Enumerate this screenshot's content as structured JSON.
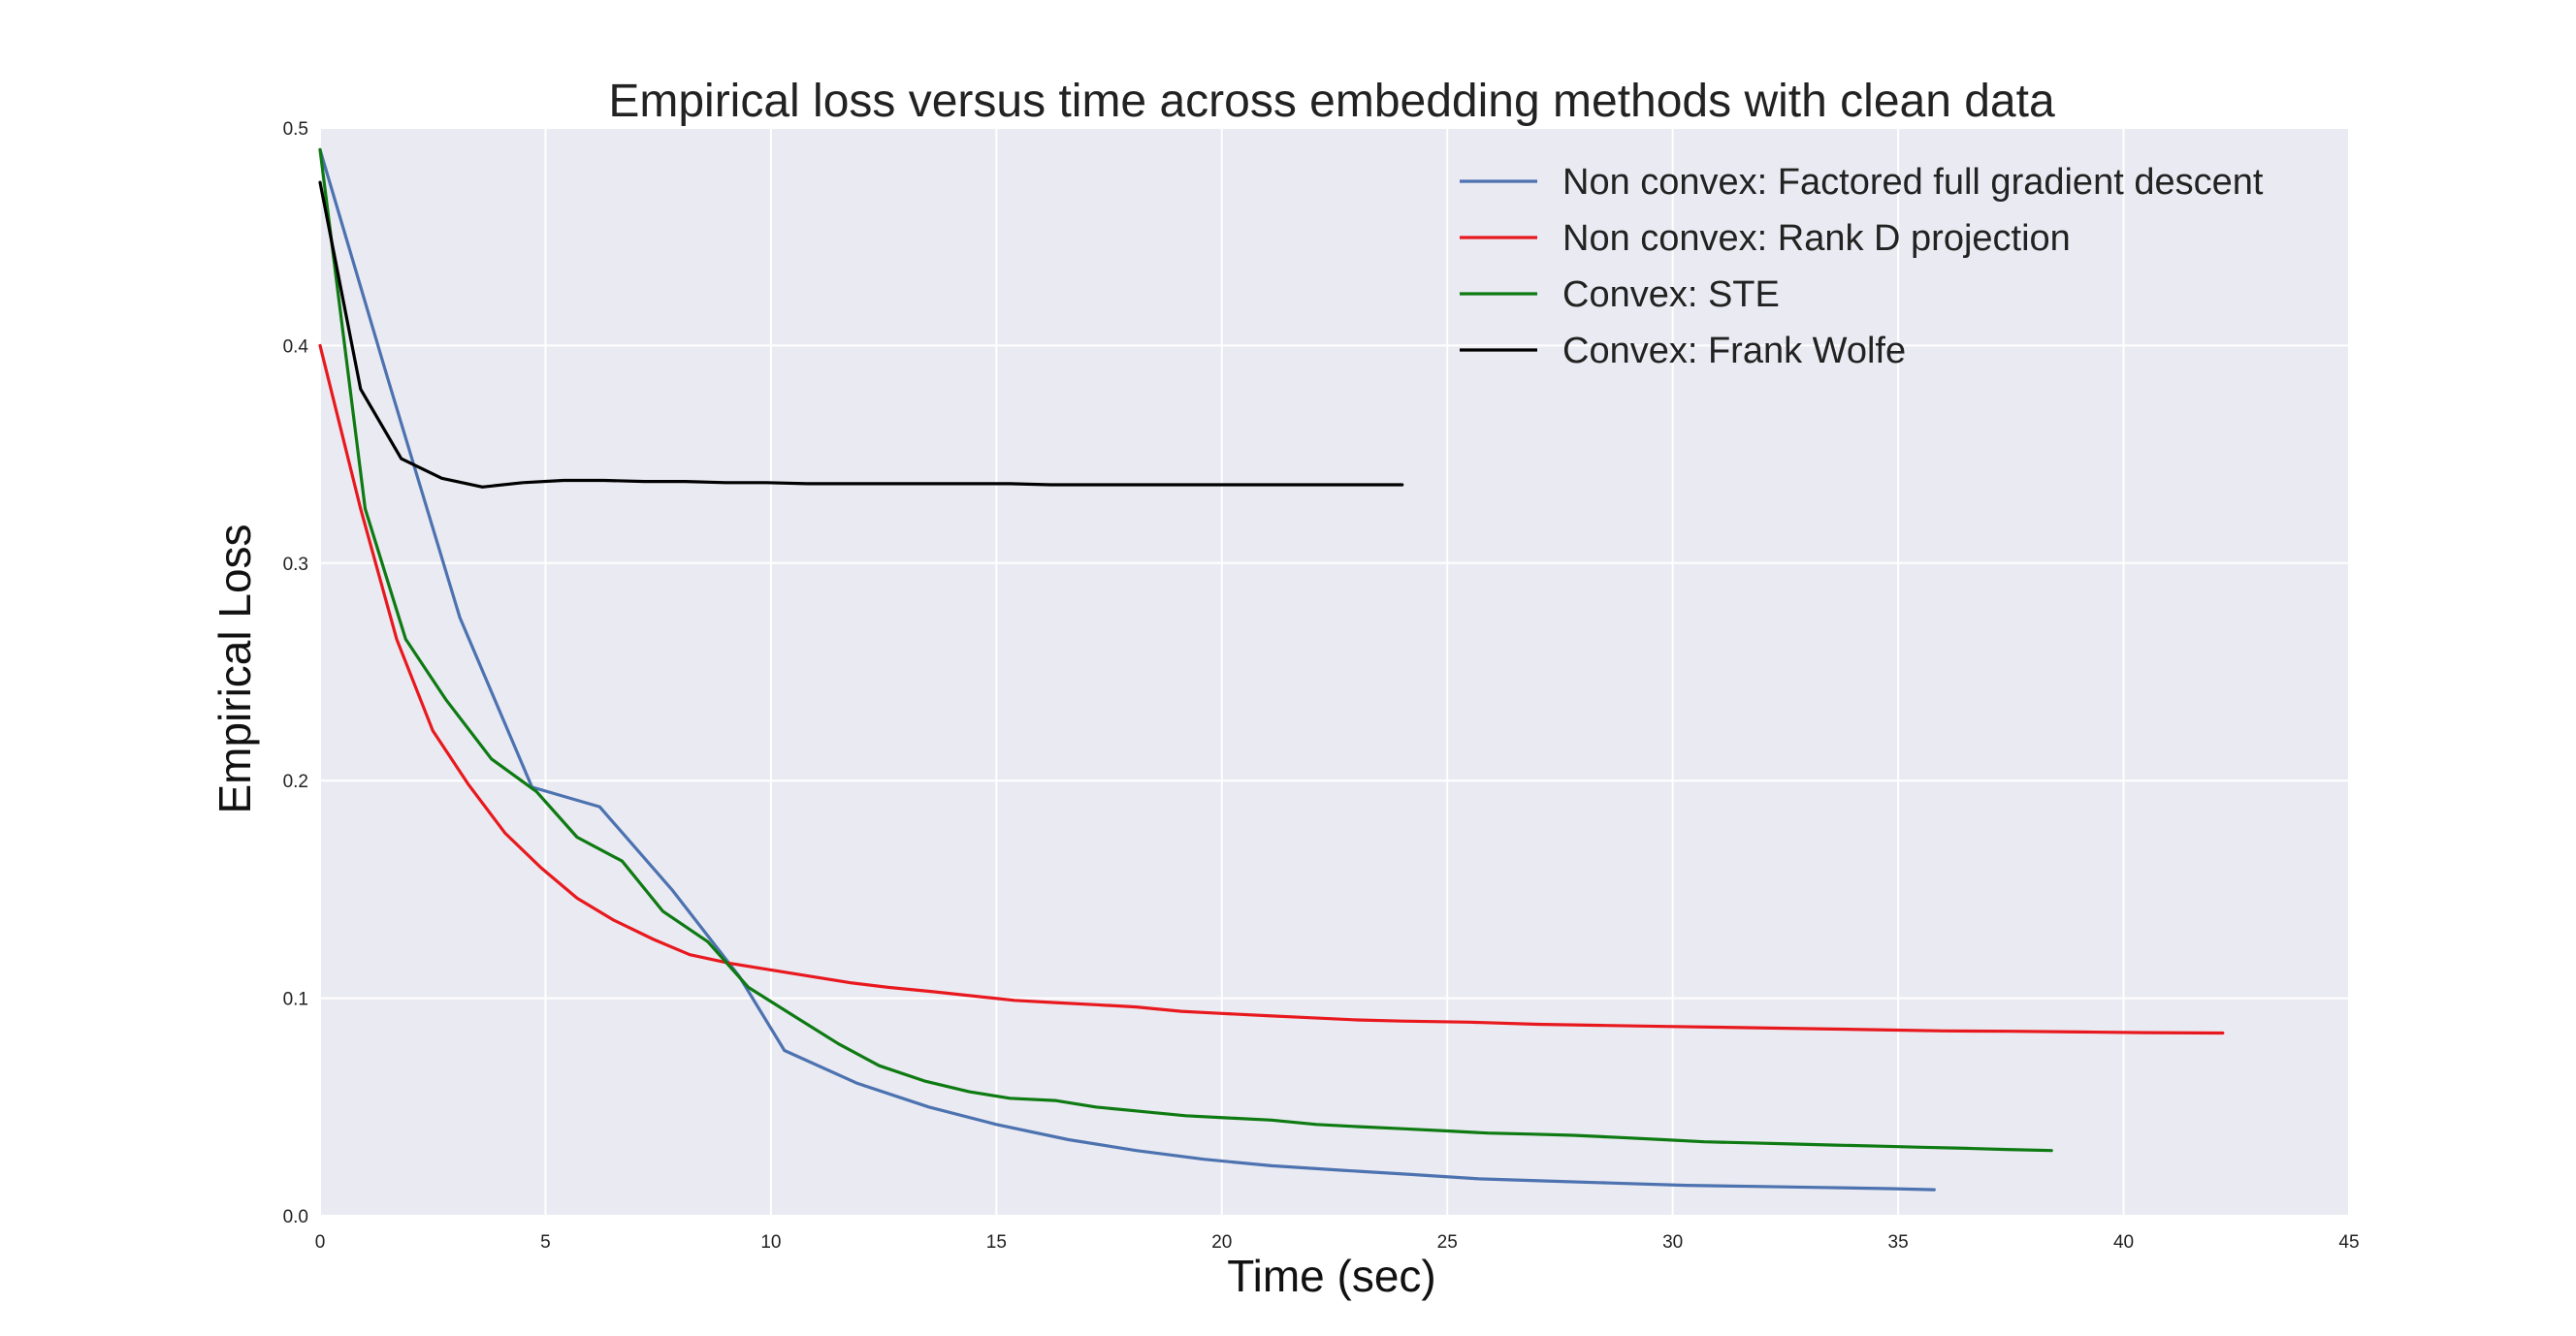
{
  "chart_data": {
    "type": "line",
    "title": "Empirical loss versus time across embedding methods with clean data",
    "xlabel": "Time (sec)",
    "ylabel": "Empirical Loss",
    "xlim": [
      0,
      45
    ],
    "ylim": [
      0.0,
      0.5
    ],
    "xticks": [
      0,
      5,
      10,
      15,
      20,
      25,
      30,
      35,
      40,
      45
    ],
    "yticks": [
      0.0,
      0.1,
      0.2,
      0.3,
      0.4,
      0.5
    ],
    "xtick_labels": [
      "0",
      "5",
      "10",
      "15",
      "20",
      "25",
      "30",
      "35",
      "40",
      "45"
    ],
    "ytick_labels": [
      "0.0",
      "0.1",
      "0.2",
      "0.3",
      "0.4",
      "0.5"
    ],
    "grid": true,
    "legend_position": "top-right",
    "series": [
      {
        "name": "Non convex: Factored full gradient descent",
        "color": "#4c72b0",
        "x": [
          0,
          1.5,
          3.1,
          4.7,
          6.2,
          7.8,
          9.3,
          10.3,
          11.9,
          13.5,
          15.0,
          16.6,
          18.1,
          19.6,
          21.1,
          22.6,
          24.2,
          25.7,
          27.2,
          28.7,
          30.3,
          31.8,
          33.3,
          34.8,
          35.8
        ],
        "y": [
          0.49,
          0.385,
          0.275,
          0.197,
          0.188,
          0.15,
          0.11,
          0.076,
          0.061,
          0.05,
          0.042,
          0.035,
          0.03,
          0.026,
          0.023,
          0.021,
          0.019,
          0.017,
          0.016,
          0.015,
          0.014,
          0.0135,
          0.013,
          0.0125,
          0.012
        ]
      },
      {
        "name": "Non convex: Rank D projection",
        "color": "#e8191e",
        "x": [
          0,
          0.9,
          1.7,
          2.5,
          3.3,
          4.1,
          4.9,
          5.7,
          6.5,
          7.4,
          8.2,
          9.1,
          10.0,
          10.9,
          11.8,
          12.6,
          13.6,
          14.5,
          15.4,
          16.3,
          17.2,
          18.1,
          19.1,
          20.0,
          21.0,
          22.0,
          23.0,
          24.0,
          25.5,
          27.0,
          28.5,
          30.0,
          31.5,
          33.0,
          34.5,
          36.0,
          37.5,
          39.0,
          40.5,
          42.2
        ],
        "y": [
          0.4,
          0.325,
          0.265,
          0.223,
          0.198,
          0.176,
          0.16,
          0.146,
          0.136,
          0.127,
          0.12,
          0.116,
          0.113,
          0.11,
          0.107,
          0.105,
          0.103,
          0.101,
          0.099,
          0.098,
          0.097,
          0.096,
          0.094,
          0.093,
          0.092,
          0.091,
          0.09,
          0.0895,
          0.089,
          0.088,
          0.0875,
          0.087,
          0.0865,
          0.086,
          0.0855,
          0.085,
          0.0848,
          0.0845,
          0.0842,
          0.084
        ]
      },
      {
        "name": "Convex: STE",
        "color": "#0e7a12",
        "x": [
          0,
          1.0,
          1.9,
          2.8,
          3.8,
          4.8,
          5.7,
          6.7,
          7.6,
          8.6,
          9.5,
          10.5,
          11.5,
          12.4,
          13.4,
          14.4,
          15.3,
          16.3,
          17.2,
          18.2,
          19.2,
          20.1,
          21.1,
          22.1,
          23.0,
          24.0,
          25.0,
          25.9,
          26.9,
          27.8,
          28.8,
          29.8,
          30.7,
          31.7,
          32.6,
          33.6,
          34.6,
          35.5,
          36.5,
          37.4,
          38.4
        ],
        "y": [
          0.49,
          0.325,
          0.265,
          0.237,
          0.21,
          0.195,
          0.174,
          0.163,
          0.14,
          0.126,
          0.105,
          0.092,
          0.079,
          0.069,
          0.062,
          0.057,
          0.054,
          0.053,
          0.05,
          0.048,
          0.046,
          0.045,
          0.044,
          0.042,
          0.041,
          0.04,
          0.039,
          0.038,
          0.0375,
          0.037,
          0.036,
          0.035,
          0.034,
          0.0335,
          0.033,
          0.0325,
          0.032,
          0.0315,
          0.031,
          0.0305,
          0.03
        ]
      },
      {
        "name": "Convex: Frank Wolfe",
        "color": "#000000",
        "x": [
          0,
          0.9,
          1.8,
          2.7,
          3.6,
          4.5,
          5.4,
          6.3,
          7.2,
          8.1,
          9.0,
          9.9,
          10.8,
          11.7,
          12.6,
          13.5,
          14.4,
          15.3,
          16.2,
          17.1,
          18.0,
          18.9,
          19.8,
          20.7,
          21.6,
          22.5,
          23.4,
          24.0
        ],
        "y": [
          0.475,
          0.38,
          0.348,
          0.339,
          0.335,
          0.337,
          0.338,
          0.338,
          0.3375,
          0.3375,
          0.337,
          0.337,
          0.3365,
          0.3365,
          0.3365,
          0.3365,
          0.3365,
          0.3365,
          0.336,
          0.336,
          0.336,
          0.336,
          0.336,
          0.336,
          0.336,
          0.336,
          0.336,
          0.336
        ]
      }
    ]
  }
}
